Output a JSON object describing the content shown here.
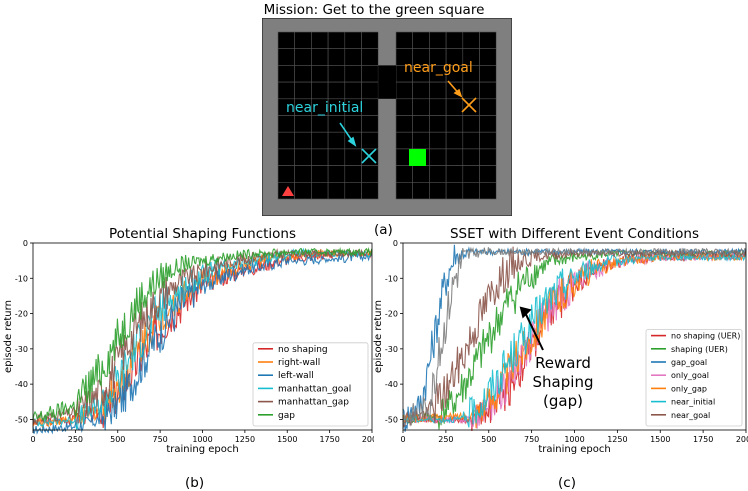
{
  "figure": {
    "top_title": "Mission: Get to the green square",
    "caption_a": "(a)",
    "caption_b": "(b)",
    "caption_c": "(c)",
    "gridworld": {
      "label_goal": "near_goal",
      "label_initial": "near_initial",
      "colors": {
        "wall": "#7f7f7f",
        "floor": "#000000",
        "goal": "#00ff00",
        "agent": "#ff4040",
        "near_goal": "#ff9e1a",
        "near_initial": "#2cd2dc"
      }
    }
  },
  "chart_data": [
    {
      "type": "line",
      "title": "Potential Shaping Functions",
      "xlabel": "training epoch",
      "ylabel": "episode return",
      "xlim": [
        0,
        2000
      ],
      "ylim": [
        -53,
        0
      ],
      "xticks": [
        0,
        250,
        500,
        750,
        1000,
        1250,
        1500,
        1750,
        2000
      ],
      "yticks": [
        0,
        -10,
        -20,
        -30,
        -40,
        -50
      ],
      "legend": "bottom-right",
      "series": [
        {
          "name": "no shaping",
          "color": "#d62728",
          "x": [
            0,
            250,
            400,
            500,
            600,
            700,
            800,
            900,
            1000,
            1100,
            1200,
            1300,
            1400,
            1500,
            1600,
            1700,
            1800,
            1900,
            2000
          ],
          "y": [
            -51,
            -50,
            -48,
            -43,
            -35,
            -27,
            -21,
            -16,
            -12,
            -10,
            -8,
            -7,
            -5.5,
            -4.5,
            -4,
            -3.5,
            -3,
            -3,
            -3
          ]
        },
        {
          "name": "right-wall",
          "color": "#ff7f0e",
          "x": [
            0,
            250,
            400,
            500,
            600,
            700,
            800,
            900,
            1000,
            1100,
            1200,
            1300,
            1400,
            1500,
            1600,
            1700,
            1800,
            1900,
            2000
          ],
          "y": [
            -51,
            -50,
            -47,
            -41,
            -32,
            -24,
            -18,
            -14,
            -11,
            -9,
            -7,
            -5.5,
            -4.5,
            -4,
            -3.5,
            -3,
            -3,
            -3,
            -3
          ]
        },
        {
          "name": "left-wall",
          "color": "#1f77b4",
          "x": [
            0,
            250,
            400,
            500,
            600,
            700,
            800,
            900,
            1000,
            1100,
            1200,
            1300,
            1400,
            1500,
            1600,
            1700,
            1800,
            1900,
            2000
          ],
          "y": [
            -53,
            -52,
            -50,
            -46,
            -38,
            -29,
            -22,
            -16,
            -12,
            -10,
            -8,
            -7,
            -6,
            -5,
            -5,
            -4.5,
            -4.5,
            -4,
            -4
          ]
        },
        {
          "name": "manhattan_goal",
          "color": "#17becf",
          "x": [
            0,
            250,
            400,
            500,
            600,
            700,
            800,
            900,
            1000,
            1100,
            1200,
            1300,
            1400,
            1500,
            1600,
            1700,
            1800,
            1900,
            2000
          ],
          "y": [
            -51,
            -50,
            -46,
            -39,
            -30,
            -22,
            -16,
            -12,
            -9,
            -7,
            -6,
            -5,
            -4,
            -3.5,
            -3,
            -3,
            -3,
            -3,
            -3
          ]
        },
        {
          "name": "manhattan_gap",
          "color": "#8c564b",
          "x": [
            0,
            250,
            400,
            500,
            600,
            700,
            800,
            900,
            1000,
            1100,
            1200,
            1300,
            1400,
            1500,
            1600,
            1700,
            1800,
            1900,
            2000
          ],
          "y": [
            -50,
            -48,
            -42,
            -34,
            -25,
            -18,
            -13,
            -10,
            -8,
            -6,
            -5,
            -4,
            -3.5,
            -3,
            -3,
            -3,
            -3,
            -3,
            -3
          ]
        },
        {
          "name": "gap",
          "color": "#2ca02c",
          "x": [
            0,
            250,
            400,
            500,
            600,
            700,
            800,
            900,
            1000,
            1100,
            1200,
            1300,
            1400,
            1500,
            1600,
            1700,
            1800,
            1900,
            2000
          ],
          "y": [
            -50,
            -46,
            -36,
            -27,
            -18,
            -12,
            -8,
            -6,
            -5,
            -4,
            -3.5,
            -3,
            -3,
            -2.5,
            -2.5,
            -2.5,
            -2.5,
            -2.5,
            -2.5
          ]
        }
      ]
    },
    {
      "type": "line",
      "title": "SSET with Different Event Conditions",
      "xlabel": "training epoch",
      "ylabel": "episode return",
      "xlim": [
        0,
        2000
      ],
      "ylim": [
        -53,
        0
      ],
      "xticks": [
        0,
        250,
        500,
        750,
        1000,
        1250,
        1500,
        1750,
        2000
      ],
      "yticks": [
        0,
        -10,
        -20,
        -30,
        -40,
        -50
      ],
      "legend": "bottom-right",
      "annotation": {
        "lines": [
          "Reward",
          "Shaping",
          "(gap)"
        ],
        "x": 680,
        "y": -18
      },
      "series": [
        {
          "name": "no shaping (UER)",
          "color": "#d62728",
          "x": [
            0,
            400,
            500,
            600,
            700,
            800,
            900,
            1000,
            1100,
            1200,
            1300,
            1400,
            1500,
            1600,
            1700,
            1800,
            1900,
            2000
          ],
          "y": [
            -50,
            -50,
            -47,
            -42,
            -34,
            -25,
            -17,
            -11,
            -8,
            -6,
            -5,
            -4.5,
            -4,
            -4,
            -3.5,
            -3.5,
            -3.5,
            -3.5
          ]
        },
        {
          "name": "shaping (UER)",
          "color": "#2ca02c",
          "x": [
            0,
            200,
            300,
            400,
            500,
            600,
            700,
            800,
            900,
            1000,
            1100,
            1200,
            1300,
            1400,
            1500,
            1600,
            1700,
            1800,
            1900,
            2000
          ],
          "y": [
            -50,
            -49,
            -45,
            -37,
            -27,
            -18,
            -11,
            -7,
            -5,
            -4,
            -3.5,
            -3,
            -3,
            -3,
            -3,
            -3,
            -3,
            -3,
            -3,
            -3
          ]
        },
        {
          "name": "gap_goal",
          "color": "#1f77b4",
          "x": [
            0,
            100,
            150,
            200,
            250,
            300,
            350,
            400,
            500,
            1000,
            1500,
            2000
          ],
          "y": [
            -50,
            -46,
            -35,
            -22,
            -10,
            -4,
            -3,
            -2.5,
            -2.5,
            -2.5,
            -2.5,
            -2.5
          ]
        },
        {
          "name": "only_goal",
          "color": "#e377c2",
          "x": [
            0,
            400,
            500,
            600,
            700,
            800,
            900,
            1000,
            1100,
            1200,
            1300,
            1400,
            1500,
            1600,
            1700,
            1800,
            1900,
            2000
          ],
          "y": [
            -50,
            -50,
            -47,
            -40,
            -31,
            -23,
            -16,
            -11,
            -8,
            -6,
            -5,
            -4.5,
            -4,
            -4,
            -4,
            -4,
            -4,
            -4
          ]
        },
        {
          "name": "only_gap",
          "color": "#ff7f0e",
          "x": [
            0,
            400,
            500,
            600,
            700,
            800,
            900,
            1000,
            1100,
            1200,
            1300,
            1400,
            1500,
            1600,
            1700,
            1800,
            1900,
            2000
          ],
          "y": [
            -50,
            -49,
            -45,
            -38,
            -30,
            -22,
            -16,
            -11,
            -8,
            -6,
            -5,
            -4.5,
            -4,
            -4,
            -4,
            -4,
            -4,
            -4
          ]
        },
        {
          "name": "near_initial",
          "color": "#17becf",
          "x": [
            0,
            350,
            450,
            550,
            650,
            750,
            850,
            950,
            1050,
            1150,
            1250,
            1350,
            1500,
            1600,
            1700,
            1800,
            1900,
            2000
          ],
          "y": [
            -50,
            -50,
            -46,
            -39,
            -31,
            -23,
            -16,
            -11,
            -8,
            -6,
            -5,
            -4.5,
            -4,
            -4,
            -4,
            -4,
            -4,
            -4
          ]
        },
        {
          "name": "near_goal",
          "color": "#8c564b",
          "x": [
            0,
            150,
            250,
            350,
            450,
            550,
            650,
            750,
            850,
            950,
            1100,
            1300,
            1500,
            1700,
            2000
          ],
          "y": [
            -50,
            -48,
            -42,
            -32,
            -21,
            -11,
            -6,
            -4,
            -3.5,
            -3,
            -3,
            -3,
            -3,
            -3,
            -3
          ]
        },
        {
          "name": "",
          "color": "#7f7f7f",
          "x": [
            0,
            150,
            200,
            250,
            300,
            350,
            400,
            500,
            1000,
            1500,
            2000
          ],
          "y": [
            -50,
            -46,
            -35,
            -22,
            -10,
            -4,
            -3,
            -2.5,
            -2.5,
            -2.5,
            -2.5
          ]
        }
      ]
    }
  ]
}
